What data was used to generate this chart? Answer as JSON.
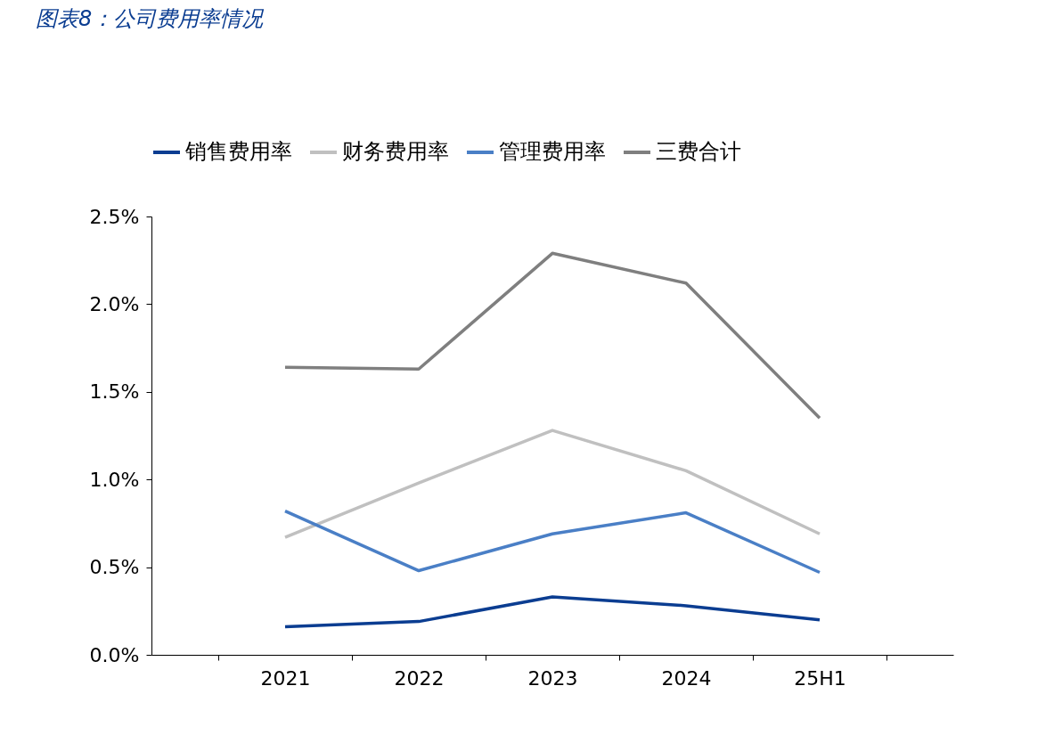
{
  "chart_data": {
    "type": "line",
    "title": "图表8：公司费用率情况",
    "categories": [
      "2021",
      "2022",
      "2023",
      "2024",
      "25H1"
    ],
    "series": [
      {
        "name": "销售费用率",
        "color": "#0b3d91",
        "values": [
          0.16,
          0.19,
          0.33,
          0.28,
          0.2
        ]
      },
      {
        "name": "财务费用率",
        "color": "#c0c0c0",
        "values": [
          0.67,
          0.98,
          1.28,
          1.05,
          0.69
        ]
      },
      {
        "name": "管理费用率",
        "color": "#4a7fc6",
        "values": [
          0.82,
          0.48,
          0.69,
          0.81,
          0.47
        ]
      },
      {
        "name": "三费合计",
        "color": "#7f7f7f",
        "values": [
          1.64,
          1.63,
          2.29,
          2.12,
          1.35
        ]
      }
    ],
    "ylim": [
      0,
      2.5
    ],
    "yticks": [
      {
        "value": 0,
        "label": "0.0%"
      },
      {
        "value": 0.5,
        "label": "0.5%"
      },
      {
        "value": 1,
        "label": "1.0%"
      },
      {
        "value": 1.5,
        "label": "1.5%"
      },
      {
        "value": 2,
        "label": "2.0%"
      },
      {
        "value": 2.5,
        "label": "2.5%"
      }
    ],
    "grid": false,
    "legend": "top",
    "marker": "none",
    "line_style": "solid"
  }
}
